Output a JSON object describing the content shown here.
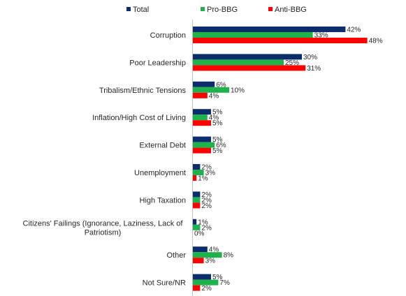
{
  "chart_data": {
    "type": "bar",
    "orientation": "horizontal",
    "categories": [
      [
        "Corruption"
      ],
      [
        "Poor Leadership"
      ],
      [
        "Tribalism/Ethnic Tensions"
      ],
      [
        "Inflation/High Cost of Living"
      ],
      [
        "External Debt"
      ],
      [
        "Unemployment"
      ],
      [
        "High Taxation"
      ],
      [
        "Citizens' Failings (Ignorance, Laziness, Lack of",
        "Patriotism)"
      ],
      [
        "Other"
      ],
      [
        "Not Sure/NR"
      ]
    ],
    "series": [
      {
        "name": "Total",
        "color": "#0b2d6b",
        "values": [
          42,
          30,
          6,
          5,
          5,
          2,
          2,
          1,
          4,
          5
        ]
      },
      {
        "name": "Pro-BBG",
        "color": "#1db34a",
        "values": [
          33,
          25,
          10,
          4,
          6,
          3,
          2,
          2,
          8,
          7
        ]
      },
      {
        "name": "Anti-BBG",
        "color": "#ff0000",
        "values": [
          48,
          31,
          4,
          5,
          5,
          1,
          2,
          0,
          3,
          2
        ]
      }
    ],
    "value_suffix": "%",
    "legend_position": "top",
    "grid": false
  }
}
